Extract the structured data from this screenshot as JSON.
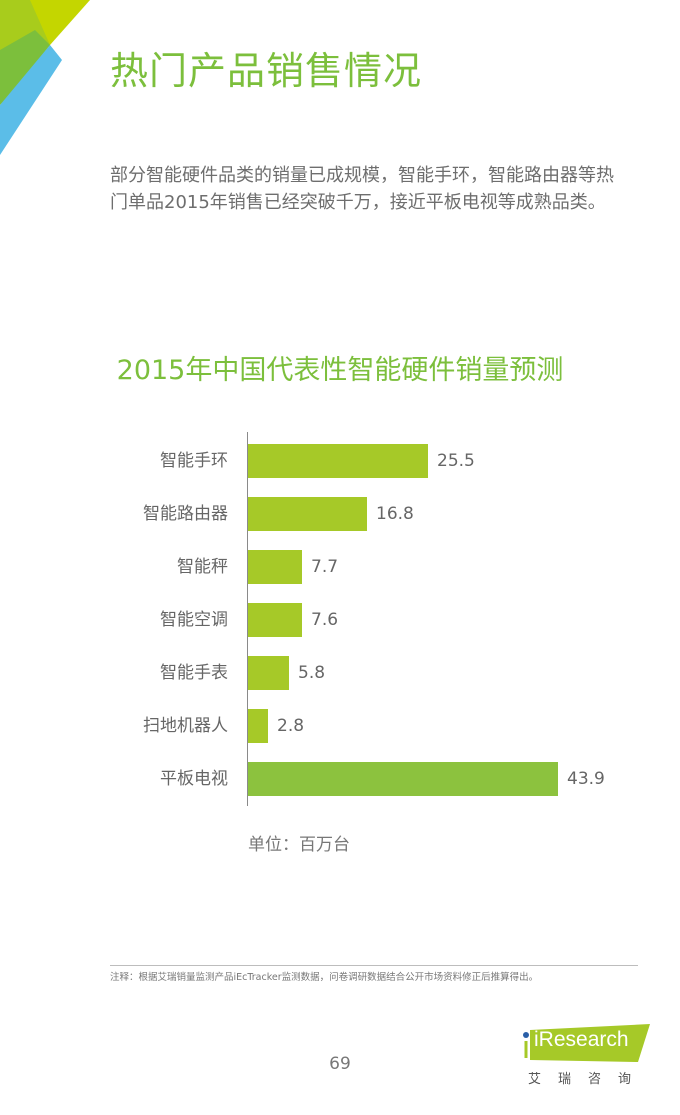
{
  "page": {
    "title": "热门产品销售情况",
    "intro": "部分智能硬件品类的销量已成规模，智能手环，智能路由器等热门单品2015年销售已经突破千万，接近平板电视等成熟品类。",
    "note": "注释：根据艾瑞销量监测产品iEcTracker监测数据，问卷调研数据结合公开市场资料修正后推算得出。",
    "page_number": "69",
    "logo": {
      "text": "iResearch",
      "cn": "艾瑞咨询",
      "color": "#a6c928",
      "dot_color": "#2a5fa8"
    },
    "colors": {
      "accent": "#7cbf3c",
      "bar": "#a6c928",
      "bar_highlight": "#8cc23e",
      "corner_blue": "#5bbde8"
    }
  },
  "chart_data": {
    "type": "bar",
    "orientation": "horizontal",
    "title": "2015年中国代表性智能硬件销量预测",
    "unit_label": "单位：百万台",
    "categories": [
      "智能手环",
      "智能路由器",
      "智能秤",
      "智能空调",
      "智能手表",
      "扫地机器人",
      "平板电视"
    ],
    "values": [
      25.5,
      16.8,
      7.7,
      7.6,
      5.8,
      2.8,
      43.9
    ],
    "value_labels": [
      "25.5",
      "16.8",
      "7.7",
      "7.6",
      "5.8",
      "2.8",
      "43.9"
    ],
    "xlabel": "",
    "ylabel": "",
    "grid": false,
    "legend": false,
    "data_labels": true
  }
}
